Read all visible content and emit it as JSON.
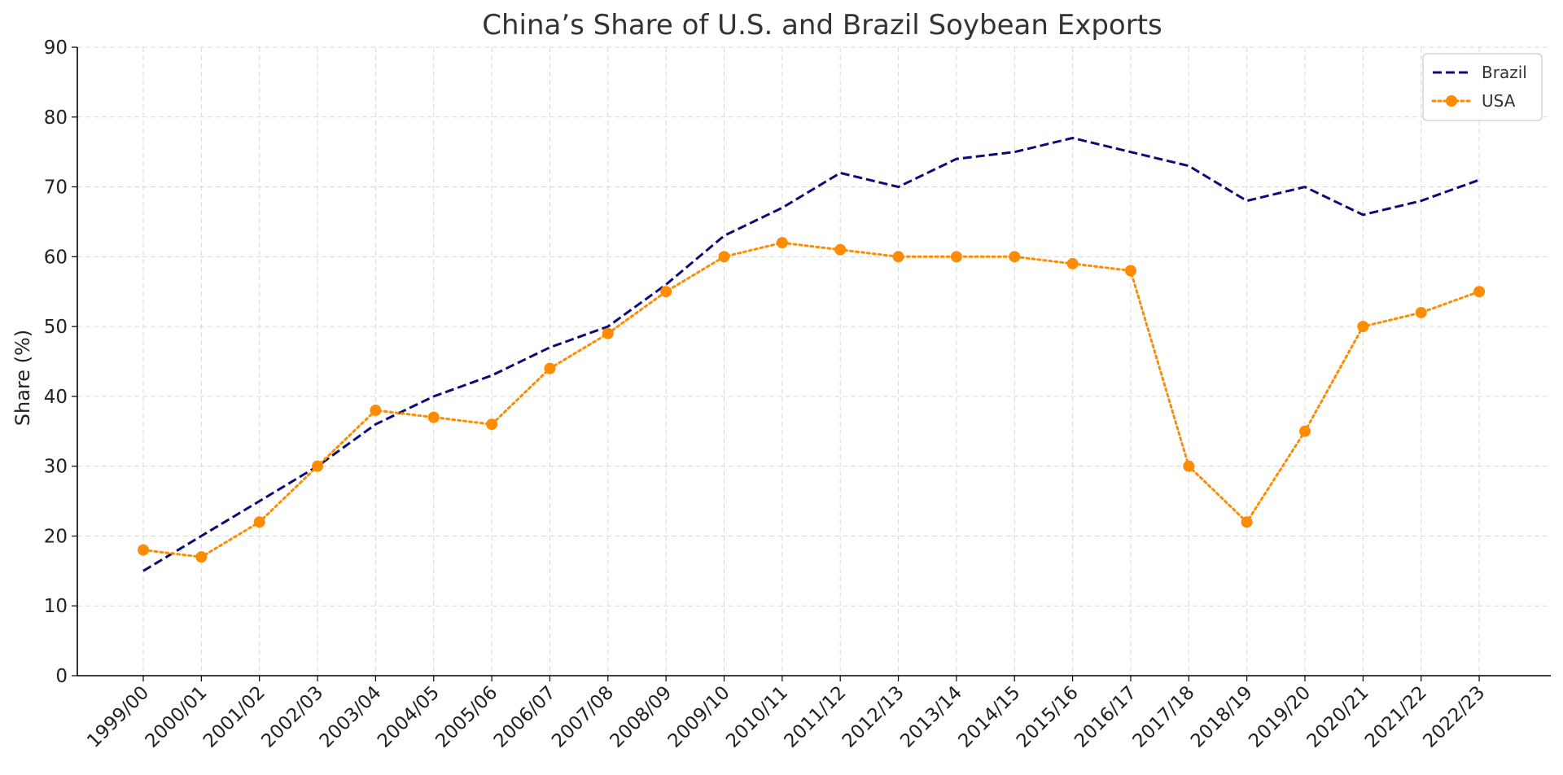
{
  "chart_data": {
    "type": "line",
    "title": "China’s Share of U.S. and Brazil Soybean Exports",
    "xlabel": "",
    "ylabel": "Share (%)",
    "ylim": [
      0,
      90
    ],
    "yticks": [
      0,
      10,
      20,
      30,
      40,
      50,
      60,
      70,
      80,
      90
    ],
    "grid": true,
    "legend_position": "top-right",
    "categories": [
      "1999/00",
      "2000/01",
      "2001/02",
      "2002/03",
      "2003/04",
      "2004/05",
      "2005/06",
      "2006/07",
      "2007/08",
      "2008/09",
      "2009/10",
      "2010/11",
      "2011/12",
      "2012/13",
      "2013/14",
      "2014/15",
      "2015/16",
      "2016/17",
      "2017/18",
      "2018/19",
      "2019/20",
      "2020/21",
      "2021/22",
      "2022/23"
    ],
    "series": [
      {
        "name": "Brazil",
        "color": "#0a0a78",
        "style": "dashed",
        "marker": "none",
        "values": [
          15,
          20,
          25,
          30,
          36,
          40,
          43,
          47,
          50,
          56,
          63,
          67,
          72,
          70,
          74,
          75,
          77,
          75,
          73,
          68,
          70,
          66,
          68,
          71
        ]
      },
      {
        "name": "USA",
        "color": "#ff8c00",
        "style": "dotted",
        "marker": "circle",
        "values": [
          18,
          17,
          22,
          30,
          38,
          37,
          36,
          44,
          49,
          55,
          60,
          62,
          61,
          60,
          60,
          60,
          59,
          58,
          30,
          22,
          35,
          50,
          52,
          55
        ]
      }
    ]
  }
}
